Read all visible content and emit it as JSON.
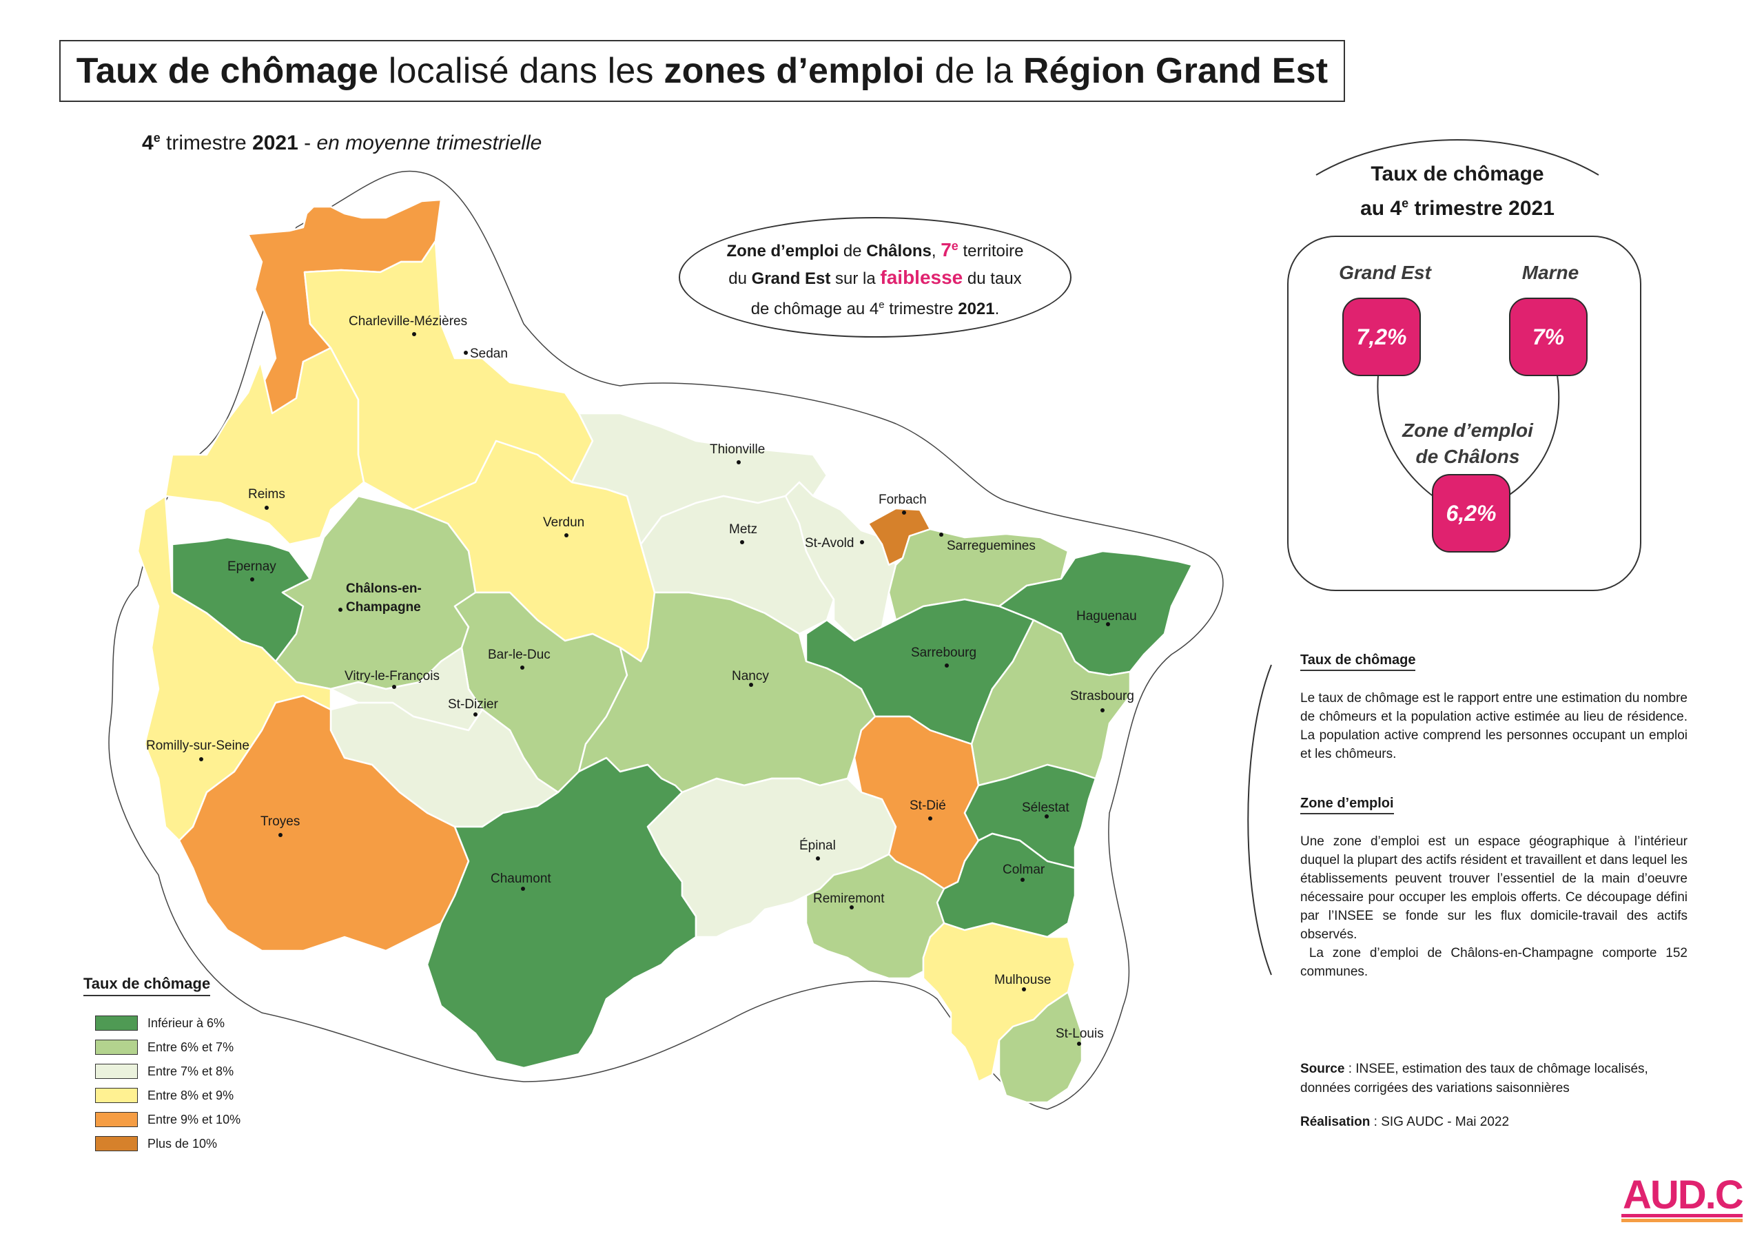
{
  "title": {
    "part1_bold": "Taux de chômage",
    "part2": " localisé dans les ",
    "part3_bold": "zones d’emploi",
    "part4": " de la ",
    "part5_bold": "Région Grand Est"
  },
  "subtitle": {
    "num": "4",
    "sup": "e",
    "text1": " trimestre ",
    "year": "2021",
    "text2": " - ",
    "italic": "en moyenne trimestrielle"
  },
  "callout": {
    "b1": "Zone d’emploi",
    "t1": " de ",
    "b2": "Châlons",
    "t2": ", ",
    "rank": "7",
    "rank_sup": "e",
    "t3": " territoire",
    "t4": "du ",
    "b3": "Grand Est",
    "t5": " sur la ",
    "pink": "faiblesse",
    "t6": " du taux",
    "t7": "de chômage au 4",
    "t7_sup": "e",
    "t8": " trimestre ",
    "b4": "2021",
    "t9": "."
  },
  "kpi": {
    "title_line1": "Taux de chômage",
    "title_line2a": "au 4",
    "title_line2_sup": "e",
    "title_line2b": " trimestre 2021",
    "grand_est_label": "Grand Est",
    "grand_est_value": "7,2%",
    "marne_label": "Marne",
    "marne_value": "7%",
    "zone_label_line1": "Zone d’emploi",
    "zone_label_line2": "de Châlons",
    "zone_value": "6,2%"
  },
  "definitions": {
    "taux_head": "Taux de chômage",
    "taux_body": "Le taux de chômage est le rapport entre une estimation du nombre de chômeurs et la population active estimée au lieu de résidence. La population active comprend les personnes occupant un emploi et les chômeurs.",
    "zone_head": "Zone d’emploi",
    "zone_body": "Une zone d’emploi est un espace géographique à l’intérieur duquel la plupart des actifs résident et travaillent et dans lequel les établissements peuvent trouver l’essentiel de la main d’oeuvre nécessaire pour occuper les emplois offerts. Ce découpage défini par l’INSEE se fonde sur les flux domicile-travail des actifs observés.",
    "zone_body2": " La zone d’emploi de Châlons-en-Champagne comporte 152 communes."
  },
  "source": {
    "label": "Source",
    "text": " : INSEE, estimation des taux de chômage localisés, données corrigées des variations saisonnières"
  },
  "realisation": {
    "label": "Réalisation",
    "text": " : SIG AUDC - Mai 2022"
  },
  "legend": {
    "title": "Taux de chômage",
    "items": [
      {
        "label": "Inférieur à 6%",
        "color": "#4f9a54"
      },
      {
        "label": "Entre 6% et 7%",
        "color": "#b3d38e"
      },
      {
        "label": "Entre 7% et 8%",
        "color": "#ebf2dd"
      },
      {
        "label": "Entre 8% et 9%",
        "color": "#fff192"
      },
      {
        "label": "Entre 9% et 10%",
        "color": "#f59d44"
      },
      {
        "label": "Plus de 10%",
        "color": "#d6812b"
      }
    ]
  },
  "colors": {
    "lt6": "#4f9a54",
    "c6_7": "#b3d38e",
    "c7_8": "#ebf2dd",
    "c8_9": "#fff192",
    "c9_10": "#f59d44",
    "gt10": "#d6812b",
    "accent": "#e0226f"
  },
  "cities": {
    "charleville": "Charleville-Mézières",
    "sedan": "Sedan",
    "reims": "Reims",
    "verdun": "Verdun",
    "thionville": "Thionville",
    "metz": "Metz",
    "forbach": "Forbach",
    "st_avold": "St-Avold",
    "sarreguemines": "Sarreguemines",
    "epernay": "Epernay",
    "chalons_1": "Châlons-en-",
    "chalons_2": "Champagne",
    "haguenau": "Haguenau",
    "sarrebourg": "Sarrebourg",
    "bar_le_duc": "Bar-le-Duc",
    "nancy": "Nancy",
    "vitry": "Vitry-le-François",
    "st_dizier": "St-Dizier",
    "strasbourg": "Strasbourg",
    "romilly": "Romilly-sur-Seine",
    "troyes": "Troyes",
    "st_die": "St-Dié",
    "selestat": "Sélestat",
    "epinal": "Épinal",
    "chaumont": "Chaumont",
    "colmar": "Colmar",
    "remiremont": "Remiremont",
    "mulhouse": "Mulhouse",
    "st_louis": "St-Louis"
  },
  "logo": {
    "text": "AUD.C"
  }
}
